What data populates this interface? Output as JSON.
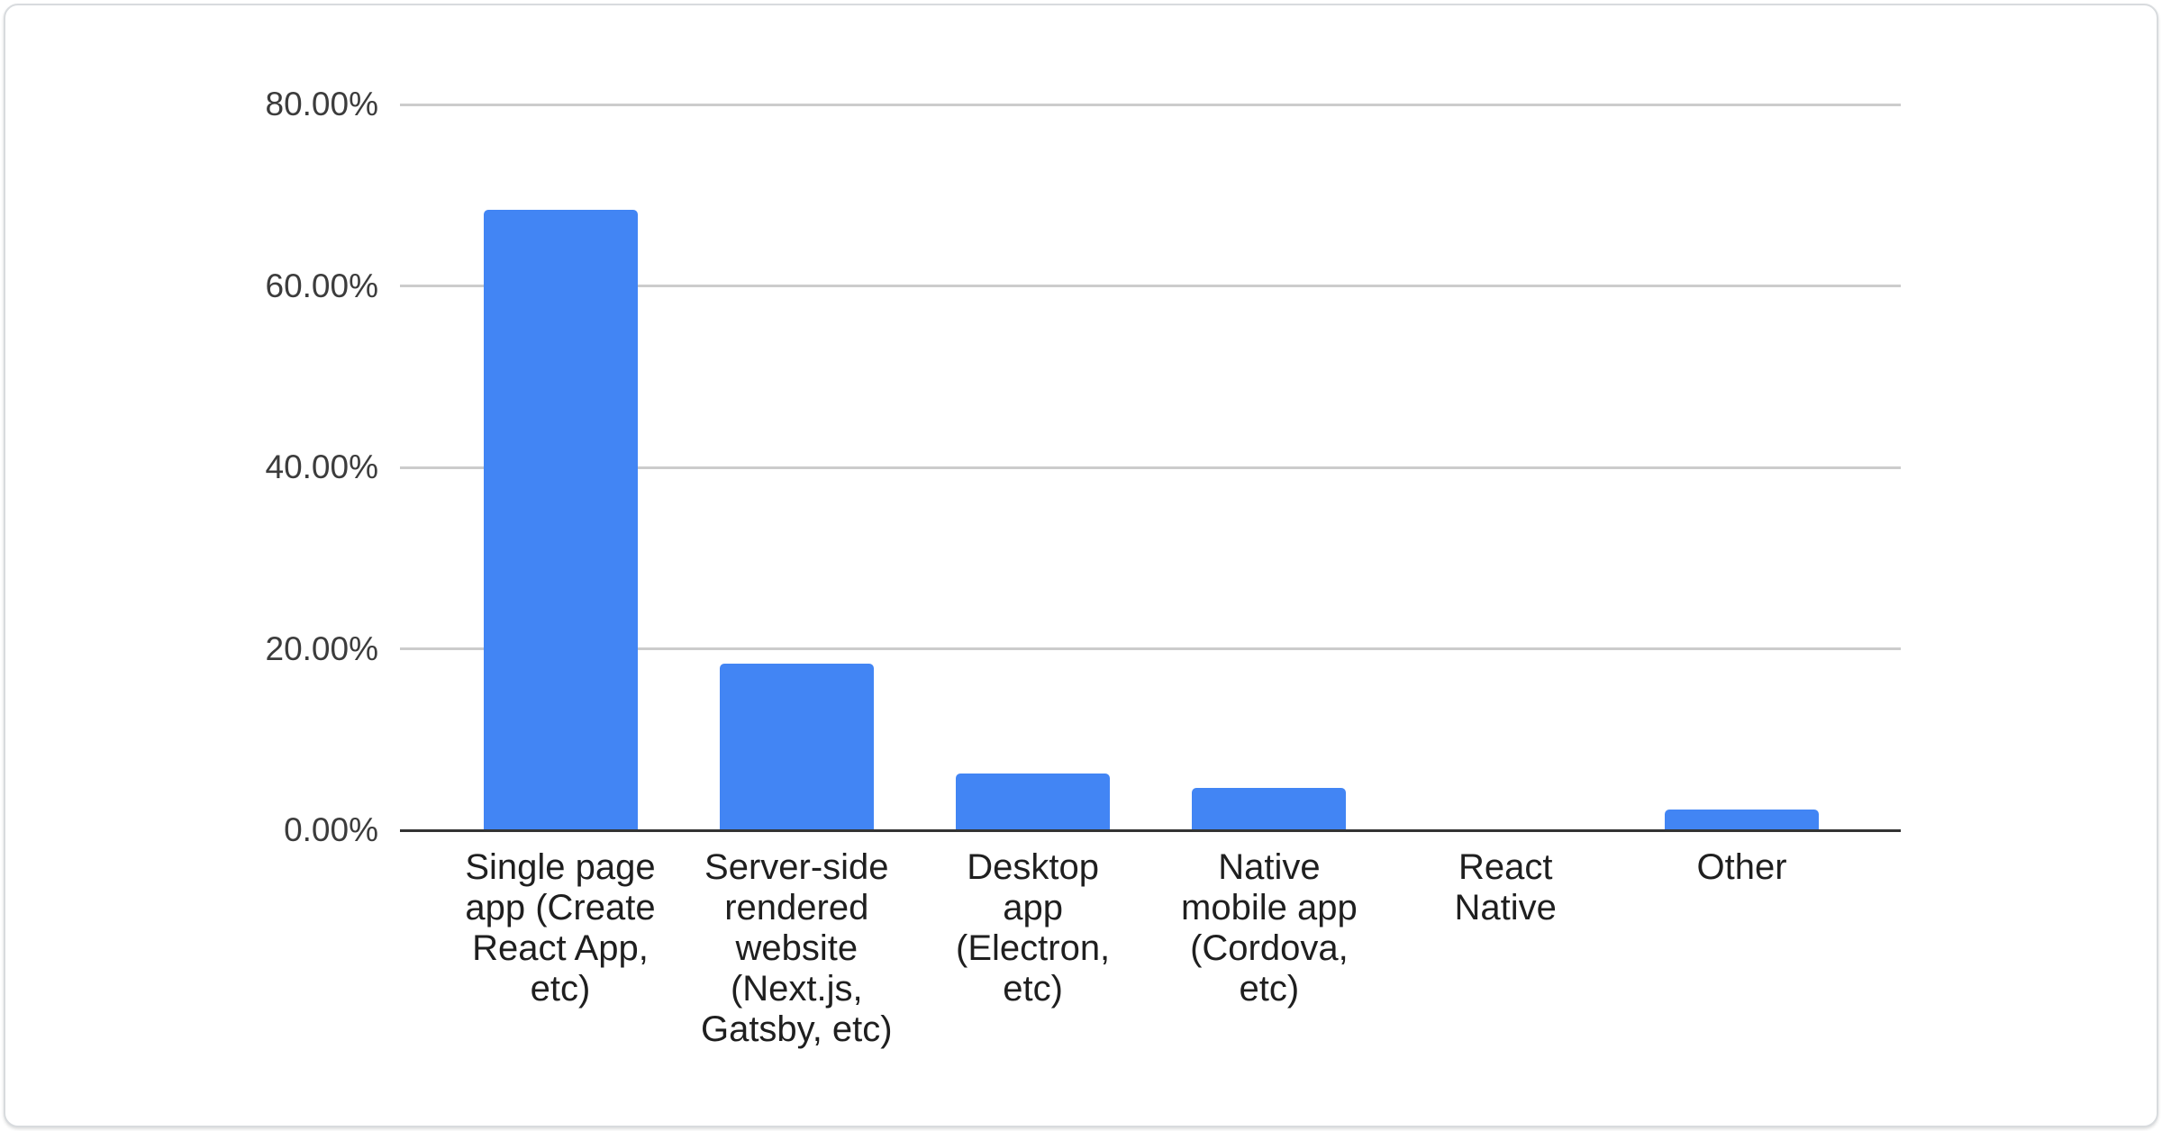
{
  "card": {
    "background": "#ffffff",
    "border_color": "#d8dbde"
  },
  "chart_data": {
    "type": "bar",
    "title": "",
    "xlabel": "",
    "ylabel": "",
    "categories": [
      "Single page app (Create React App, etc)",
      "Server-side rendered website (Next.js, Gatsby, etc)",
      "Desktop app (Electron, etc)",
      "Native mobile app (Cordova, etc)",
      "React Native",
      "Other"
    ],
    "categories_wrapped": [
      [
        "Single page",
        "app (Create",
        "React App,",
        "etc)"
      ],
      [
        "Server-side",
        "rendered",
        "website",
        "(Next.js,",
        "Gatsby, etc)"
      ],
      [
        "Desktop",
        "app",
        "(Electron,",
        "etc)"
      ],
      [
        "Native",
        "mobile app",
        "(Cordova,",
        "etc)"
      ],
      [
        "React",
        "Native"
      ],
      [
        "Other"
      ]
    ],
    "values": [
      68.4,
      18.4,
      6.3,
      4.7,
      0,
      2.3
    ],
    "unit": "%",
    "ylim": [
      0,
      80
    ],
    "yticks": [
      {
        "value": 80,
        "label": "80.00%"
      },
      {
        "value": 60,
        "label": "60.00%"
      },
      {
        "value": 40,
        "label": "40.00%"
      },
      {
        "value": 20,
        "label": "20.00%"
      },
      {
        "value": 0,
        "label": "0.00%"
      }
    ],
    "grid": true,
    "legend_position": "none",
    "bar_color": "#4285f4",
    "gridline_color": "#cccccc",
    "axis_line_color": "#333333",
    "ytick_color": "#3c3c3c",
    "xtick_color": "#1f1f1f"
  }
}
